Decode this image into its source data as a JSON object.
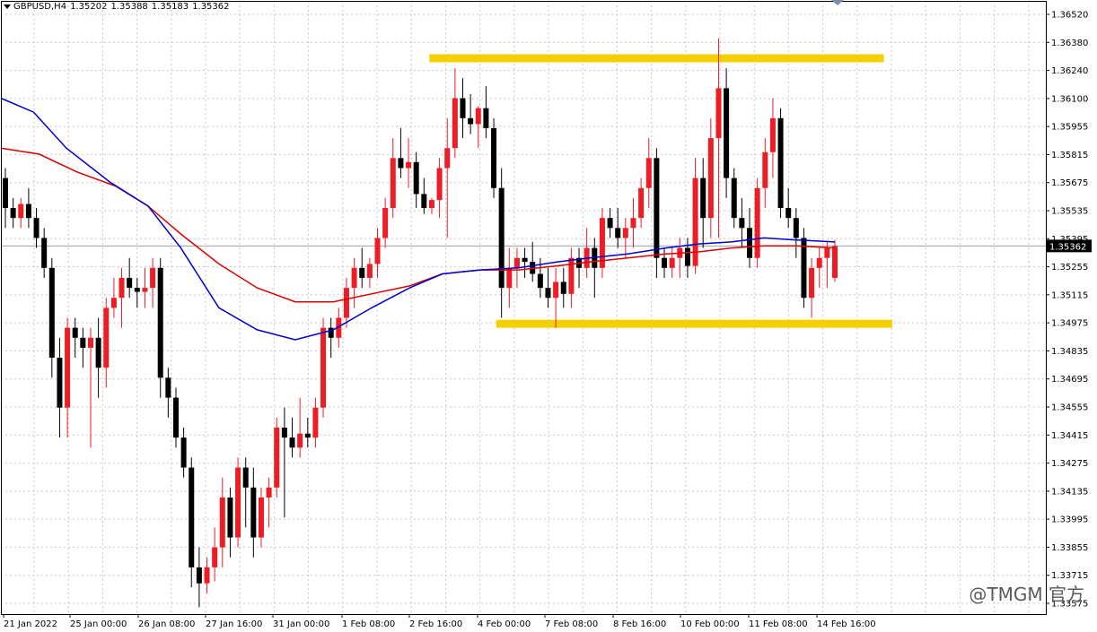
{
  "header": {
    "symbol": "GBPUSD,H4",
    "open": "1.35202",
    "high": "1.35388",
    "low": "1.35183",
    "close": "1.35362"
  },
  "watermark": "@TMGM 官方",
  "current_price_label": "1.35362",
  "colors": {
    "bull": "#ee1c25",
    "bear": "#000000",
    "ma_fast": "#0000cc",
    "ma_slow": "#dd0000",
    "zone": "#f5d000",
    "grid": "#c8c8c8",
    "price_line": "#a0a0a0"
  },
  "chart_data": {
    "type": "candlestick",
    "ylim": [
      1.3352,
      1.3656
    ],
    "price_ticks": [
      "1.36520",
      "1.36380",
      "1.36240",
      "1.36100",
      "1.35955",
      "1.35815",
      "1.35675",
      "1.35535",
      "1.35395",
      "1.35255",
      "1.35115",
      "1.34975",
      "1.34835",
      "1.34695",
      "1.34555",
      "1.34415",
      "1.34275",
      "1.34135",
      "1.33995",
      "1.33855",
      "1.33715",
      "1.33575"
    ],
    "time_ticks": [
      "21 Jan 2022",
      "25 Jan 00:00",
      "26 Jan 08:00",
      "27 Jan 16:00",
      "31 Jan 00:00",
      "1 Feb 08:00",
      "2 Feb 16:00",
      "4 Feb 00:00",
      "7 Feb 08:00",
      "8 Feb 16:00",
      "10 Feb 00:00",
      "11 Feb 08:00",
      "14 Feb 16:00"
    ],
    "candles": [
      [
        1.357,
        1.3575,
        1.3545,
        1.3555
      ],
      [
        1.3555,
        1.356,
        1.3545,
        1.355
      ],
      [
        1.355,
        1.356,
        1.3545,
        1.3557
      ],
      [
        1.3557,
        1.3565,
        1.3545,
        1.355
      ],
      [
        1.355,
        1.3555,
        1.3535,
        1.354
      ],
      [
        1.354,
        1.3545,
        1.352,
        1.3525
      ],
      [
        1.3525,
        1.353,
        1.347,
        1.348
      ],
      [
        1.348,
        1.349,
        1.344,
        1.3455
      ],
      [
        1.3455,
        1.35,
        1.344,
        1.3495
      ],
      [
        1.3495,
        1.35,
        1.348,
        1.349
      ],
      [
        1.349,
        1.3495,
        1.3475,
        1.3485
      ],
      [
        1.3485,
        1.3495,
        1.3435,
        1.349
      ],
      [
        1.349,
        1.35,
        1.346,
        1.3475
      ],
      [
        1.3475,
        1.351,
        1.3465,
        1.3505
      ],
      [
        1.3505,
        1.352,
        1.35,
        1.351
      ],
      [
        1.351,
        1.3525,
        1.3495,
        1.352
      ],
      [
        1.352,
        1.353,
        1.351,
        1.3515
      ],
      [
        1.3515,
        1.352,
        1.3505,
        1.3513
      ],
      [
        1.3513,
        1.3525,
        1.3505,
        1.3515
      ],
      [
        1.3515,
        1.353,
        1.3505,
        1.3525
      ],
      [
        1.3525,
        1.353,
        1.346,
        1.347
      ],
      [
        1.347,
        1.3475,
        1.345,
        1.346
      ],
      [
        1.346,
        1.3465,
        1.3435,
        1.344
      ],
      [
        1.344,
        1.3445,
        1.342,
        1.3425
      ],
      [
        1.3425,
        1.343,
        1.3365,
        1.3375
      ],
      [
        1.3375,
        1.3385,
        1.3355,
        1.3367
      ],
      [
        1.3367,
        1.338,
        1.3362,
        1.3375
      ],
      [
        1.3375,
        1.3395,
        1.3368,
        1.3385
      ],
      [
        1.3385,
        1.342,
        1.3375,
        1.341
      ],
      [
        1.341,
        1.3415,
        1.338,
        1.339
      ],
      [
        1.339,
        1.343,
        1.3385,
        1.3425
      ],
      [
        1.3425,
        1.343,
        1.3395,
        1.3415
      ],
      [
        1.3415,
        1.3425,
        1.338,
        1.339
      ],
      [
        1.339,
        1.3415,
        1.3385,
        1.341
      ],
      [
        1.341,
        1.342,
        1.3395,
        1.3415
      ],
      [
        1.3415,
        1.345,
        1.341,
        1.3445
      ],
      [
        1.3445,
        1.3455,
        1.34,
        1.344
      ],
      [
        1.344,
        1.345,
        1.343,
        1.3435
      ],
      [
        1.3435,
        1.346,
        1.343,
        1.3442
      ],
      [
        1.3442,
        1.345,
        1.3435,
        1.344
      ],
      [
        1.344,
        1.346,
        1.3435,
        1.3455
      ],
      [
        1.3455,
        1.35,
        1.345,
        1.3495
      ],
      [
        1.3495,
        1.35,
        1.348,
        1.349
      ],
      [
        1.349,
        1.3505,
        1.3485,
        1.35
      ],
      [
        1.35,
        1.352,
        1.3495,
        1.3515
      ],
      [
        1.3515,
        1.353,
        1.3505,
        1.3525
      ],
      [
        1.3525,
        1.3535,
        1.3515,
        1.352
      ],
      [
        1.352,
        1.353,
        1.3515,
        1.3527
      ],
      [
        1.3527,
        1.3545,
        1.352,
        1.354
      ],
      [
        1.354,
        1.356,
        1.3535,
        1.3555
      ],
      [
        1.3555,
        1.359,
        1.355,
        1.358
      ],
      [
        1.358,
        1.3595,
        1.357,
        1.3575
      ],
      [
        1.3575,
        1.359,
        1.3565,
        1.3578
      ],
      [
        1.3578,
        1.3583,
        1.3555,
        1.3562
      ],
      [
        1.3562,
        1.357,
        1.3552,
        1.3555
      ],
      [
        1.3555,
        1.356,
        1.3552,
        1.3559
      ],
      [
        1.3559,
        1.358,
        1.355,
        1.3575
      ],
      [
        1.3575,
        1.36,
        1.354,
        1.3585
      ],
      [
        1.3585,
        1.3625,
        1.358,
        1.361
      ],
      [
        1.361,
        1.362,
        1.359,
        1.36
      ],
      [
        1.36,
        1.3612,
        1.3592,
        1.3597
      ],
      [
        1.3597,
        1.3606,
        1.3585,
        1.3605
      ],
      [
        1.3605,
        1.3616,
        1.359,
        1.3595
      ],
      [
        1.3595,
        1.36,
        1.356,
        1.3565
      ],
      [
        1.3565,
        1.3575,
        1.35,
        1.3515
      ],
      [
        1.3515,
        1.3535,
        1.3505,
        1.3525
      ],
      [
        1.3525,
        1.3535,
        1.3515,
        1.353
      ],
      [
        1.353,
        1.3535,
        1.352,
        1.3528
      ],
      [
        1.3528,
        1.3538,
        1.3518,
        1.3522
      ],
      [
        1.3522,
        1.353,
        1.351,
        1.3515
      ],
      [
        1.3515,
        1.3525,
        1.3505,
        1.351
      ],
      [
        1.351,
        1.3525,
        1.3495,
        1.3518
      ],
      [
        1.3518,
        1.3525,
        1.3505,
        1.3512
      ],
      [
        1.3512,
        1.3535,
        1.3505,
        1.353
      ],
      [
        1.353,
        1.3535,
        1.3515,
        1.3525
      ],
      [
        1.3525,
        1.3545,
        1.352,
        1.3535
      ],
      [
        1.3535,
        1.354,
        1.351,
        1.3525
      ],
      [
        1.3525,
        1.3555,
        1.352,
        1.355
      ],
      [
        1.355,
        1.3555,
        1.354,
        1.3545
      ],
      [
        1.3545,
        1.3555,
        1.3535,
        1.354
      ],
      [
        1.354,
        1.355,
        1.353,
        1.3545
      ],
      [
        1.3545,
        1.356,
        1.3535,
        1.355
      ],
      [
        1.355,
        1.357,
        1.3545,
        1.3565
      ],
      [
        1.3565,
        1.359,
        1.3555,
        1.358
      ],
      [
        1.358,
        1.3585,
        1.352,
        1.353
      ],
      [
        1.353,
        1.3535,
        1.352,
        1.3525
      ],
      [
        1.3525,
        1.3535,
        1.352,
        1.353
      ],
      [
        1.353,
        1.354,
        1.352,
        1.3535
      ],
      [
        1.3535,
        1.354,
        1.352,
        1.3526
      ],
      [
        1.3526,
        1.358,
        1.3522,
        1.357
      ],
      [
        1.357,
        1.358,
        1.3535,
        1.355
      ],
      [
        1.355,
        1.36,
        1.354,
        1.359
      ],
      [
        1.359,
        1.364,
        1.354,
        1.3615
      ],
      [
        1.3615,
        1.3625,
        1.356,
        1.357
      ],
      [
        1.357,
        1.3575,
        1.3545,
        1.355
      ],
      [
        1.355,
        1.356,
        1.3535,
        1.3545
      ],
      [
        1.3545,
        1.3555,
        1.3525,
        1.353
      ],
      [
        1.353,
        1.357,
        1.3525,
        1.3565
      ],
      [
        1.3565,
        1.359,
        1.3555,
        1.3583
      ],
      [
        1.3583,
        1.361,
        1.357,
        1.36
      ],
      [
        1.36,
        1.3605,
        1.355,
        1.3555
      ],
      [
        1.3555,
        1.3565,
        1.3545,
        1.355
      ],
      [
        1.355,
        1.3555,
        1.353,
        1.354
      ],
      [
        1.354,
        1.3545,
        1.3505,
        1.351
      ],
      [
        1.351,
        1.353,
        1.35,
        1.3525
      ],
      [
        1.3525,
        1.3535,
        1.3515,
        1.353
      ],
      [
        1.353,
        1.3538,
        1.3515,
        1.3535
      ],
      [
        1.352,
        1.3539,
        1.3518,
        1.3536
      ]
    ],
    "ma_fast": [
      [
        0,
        1.361
      ],
      [
        6,
        1.3603
      ],
      [
        12,
        1.3585
      ],
      [
        20,
        1.3568
      ],
      [
        27,
        1.3556
      ],
      [
        33,
        1.3535
      ],
      [
        40,
        1.3505
      ],
      [
        47,
        1.3494
      ],
      [
        54,
        1.3489
      ],
      [
        61,
        1.3494
      ],
      [
        68,
        1.3505
      ],
      [
        75,
        1.3515
      ],
      [
        81,
        1.3522
      ],
      [
        88,
        1.3524
      ],
      [
        95,
        1.3525
      ],
      [
        102,
        1.3528
      ],
      [
        108,
        1.353
      ],
      [
        115,
        1.3532
      ],
      [
        122,
        1.3535
      ],
      [
        128,
        1.3537
      ],
      [
        134,
        1.3538
      ],
      [
        140,
        1.354
      ],
      [
        146,
        1.3539
      ],
      [
        153,
        1.3538
      ]
    ],
    "ma_slow": [
      [
        0,
        1.3585
      ],
      [
        7,
        1.3582
      ],
      [
        14,
        1.3573
      ],
      [
        21,
        1.3566
      ],
      [
        27,
        1.3556
      ],
      [
        33,
        1.3542
      ],
      [
        40,
        1.3527
      ],
      [
        47,
        1.3515
      ],
      [
        54,
        1.3508
      ],
      [
        61,
        1.3508
      ],
      [
        68,
        1.3512
      ],
      [
        75,
        1.3516
      ],
      [
        81,
        1.3522
      ],
      [
        88,
        1.3524
      ],
      [
        95,
        1.3524
      ],
      [
        102,
        1.3526
      ],
      [
        108,
        1.3528
      ],
      [
        115,
        1.353
      ],
      [
        122,
        1.3532
      ],
      [
        128,
        1.3533
      ],
      [
        134,
        1.3535
      ],
      [
        140,
        1.3536
      ],
      [
        146,
        1.3536
      ],
      [
        153,
        1.3535
      ]
    ],
    "zones": [
      {
        "from": 1.3628,
        "to": 1.3632,
        "x_start": 0.41,
        "x_end": 0.845
      },
      {
        "from": 1.3495,
        "to": 1.3499,
        "x_start": 0.474,
        "x_end": 0.853
      }
    ]
  }
}
